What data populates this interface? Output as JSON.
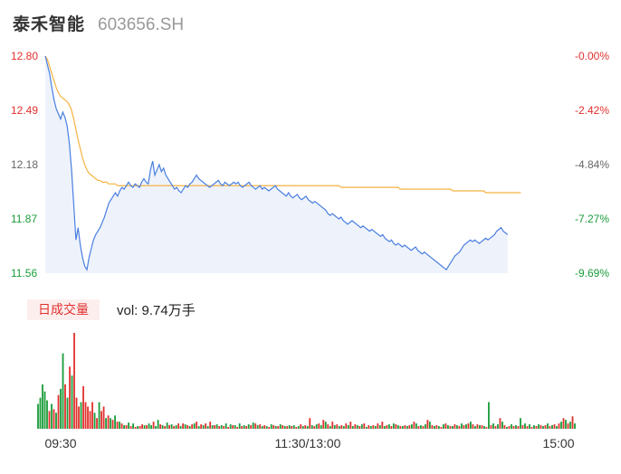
{
  "header": {
    "stock_name": "泰禾智能",
    "stock_code": "603656.SH"
  },
  "volume_panel": {
    "tab_label": "日成交量",
    "vol_prefix": "vol: ",
    "vol_value": "9.74万手"
  },
  "colors": {
    "up": "#e0312e",
    "down": "#1a9c3a",
    "price_line": "#4a7fe0",
    "avg_line": "#f5b342",
    "area_fill": "#eef3fb",
    "price_up_label": "#e0312e",
    "price_down_label": "#1a9c3a",
    "neutral_label": "#666666"
  },
  "chart_data": [
    {
      "type": "line",
      "y_left_ticks": [
        "12.80",
        "12.49",
        "12.18",
        "11.87",
        "11.56"
      ],
      "y_right_ticks": [
        "-0.00%",
        "-2.42%",
        "-4.84%",
        "-7.27%",
        "-9.69%"
      ],
      "ylim": [
        11.56,
        12.8
      ],
      "x_ticks": [
        "09:30",
        "11:30/13:00",
        "15:00"
      ],
      "total_minutes": 241,
      "series": [
        {
          "values": [
            12.8,
            12.75,
            12.7,
            12.62,
            12.55,
            12.5,
            12.47,
            12.44,
            12.48,
            12.45,
            12.4,
            12.3,
            12.15,
            11.95,
            11.75,
            11.82,
            11.72,
            11.65,
            11.6,
            11.58,
            11.65,
            11.7,
            11.75,
            11.78,
            11.8,
            11.82,
            11.85,
            11.88,
            11.92,
            11.96,
            11.98,
            12.0,
            12.02,
            12.0,
            12.03,
            12.05,
            12.04,
            12.06,
            12.08,
            12.06,
            12.05,
            12.07,
            12.06,
            12.05,
            12.08,
            12.1,
            12.08,
            12.07,
            12.15,
            12.2,
            12.12,
            12.15,
            12.18,
            12.14,
            12.16,
            12.12,
            12.1,
            12.08,
            12.06,
            12.04,
            12.05,
            12.03,
            12.02,
            12.04,
            12.06,
            12.05,
            12.07,
            12.08,
            12.1,
            12.12,
            12.1,
            12.09,
            12.08,
            12.07,
            12.06,
            12.05,
            12.06,
            12.07,
            12.08,
            12.09,
            12.07,
            12.06,
            12.08,
            12.07,
            12.06,
            12.07,
            12.08,
            12.07,
            12.08,
            12.06,
            12.05,
            12.06,
            12.07,
            12.08,
            12.06,
            12.05,
            12.04,
            12.05,
            12.06,
            12.04,
            12.05,
            12.04,
            12.03,
            12.04,
            12.05,
            12.06,
            12.04,
            12.03,
            12.02,
            12.01,
            12.0,
            12.02,
            12.0,
            11.99,
            12.0,
            12.01,
            11.99,
            11.98,
            11.99,
            12.0,
            11.98,
            11.97,
            11.96,
            11.97,
            11.96,
            11.95,
            11.94,
            11.93,
            11.92,
            11.9,
            11.89,
            11.9,
            11.89,
            11.88,
            11.87,
            11.88,
            11.86,
            11.85,
            11.84,
            11.85,
            11.86,
            11.85,
            11.84,
            11.83,
            11.82,
            11.83,
            11.82,
            11.81,
            11.8,
            11.81,
            11.8,
            11.79,
            11.78,
            11.77,
            11.78,
            11.76,
            11.75,
            11.74,
            11.75,
            11.73,
            11.72,
            11.73,
            11.72,
            11.71,
            11.72,
            11.71,
            11.7,
            11.69,
            11.7,
            11.71,
            11.69,
            11.68,
            11.67,
            11.68,
            11.67,
            11.66,
            11.65,
            11.64,
            11.63,
            11.62,
            11.61,
            11.6,
            11.59,
            11.58,
            11.6,
            11.62,
            11.64,
            11.66,
            11.67,
            11.68,
            11.7,
            11.72,
            11.73,
            11.74,
            11.75,
            11.74,
            11.75,
            11.74,
            11.73,
            11.74,
            11.75,
            11.76,
            11.75,
            11.76,
            11.77,
            11.78,
            11.8,
            11.81,
            11.82,
            11.8,
            11.79,
            11.78
          ],
          "color_key": "price_line"
        },
        {
          "values": [
            12.8,
            12.78,
            12.74,
            12.7,
            12.66,
            12.62,
            12.59,
            12.57,
            12.56,
            12.55,
            12.54,
            12.52,
            12.49,
            12.44,
            12.38,
            12.32,
            12.27,
            12.22,
            12.18,
            12.15,
            12.13,
            12.12,
            12.11,
            12.1,
            12.09,
            12.09,
            12.08,
            12.08,
            12.08,
            12.07,
            12.07,
            12.07,
            12.07,
            12.06,
            12.06,
            12.06,
            12.06,
            12.06,
            12.06,
            12.06,
            12.06,
            12.06,
            12.06,
            12.06,
            12.06,
            12.06,
            12.06,
            12.06,
            12.06,
            12.06,
            12.06,
            12.06,
            12.06,
            12.06,
            12.06,
            12.06,
            12.06,
            12.06,
            12.06,
            12.06,
            12.06,
            12.06,
            12.06,
            12.06,
            12.06,
            12.06,
            12.06,
            12.06,
            12.06,
            12.06,
            12.06,
            12.06,
            12.06,
            12.06,
            12.06,
            12.06,
            12.06,
            12.06,
            12.06,
            12.06,
            12.06,
            12.06,
            12.06,
            12.06,
            12.06,
            12.06,
            12.06,
            12.06,
            12.06,
            12.06,
            12.06,
            12.06,
            12.06,
            12.06,
            12.06,
            12.06,
            12.06,
            12.06,
            12.06,
            12.06,
            12.06,
            12.06,
            12.06,
            12.06,
            12.06,
            12.06,
            12.06,
            12.06,
            12.06,
            12.06,
            12.06,
            12.06,
            12.06,
            12.06,
            12.06,
            12.06,
            12.06,
            12.06,
            12.06,
            12.06,
            12.06,
            12.06,
            12.06,
            12.06,
            12.06,
            12.06,
            12.06,
            12.06,
            12.06,
            12.06,
            12.06,
            12.06,
            12.06,
            12.06,
            12.06,
            12.05,
            12.05,
            12.05,
            12.05,
            12.05,
            12.05,
            12.05,
            12.05,
            12.05,
            12.05,
            12.05,
            12.05,
            12.05,
            12.05,
            12.05,
            12.05,
            12.05,
            12.05,
            12.05,
            12.05,
            12.05,
            12.05,
            12.05,
            12.05,
            12.05,
            12.05,
            12.05,
            12.04,
            12.04,
            12.04,
            12.04,
            12.04,
            12.04,
            12.04,
            12.04,
            12.04,
            12.04,
            12.04,
            12.04,
            12.04,
            12.04,
            12.04,
            12.04,
            12.04,
            12.04,
            12.04,
            12.04,
            12.04,
            12.04,
            12.04,
            12.04,
            12.03,
            12.03,
            12.03,
            12.03,
            12.03,
            12.03,
            12.03,
            12.03,
            12.03,
            12.03,
            12.03,
            12.03,
            12.03,
            12.03,
            12.03,
            12.02,
            12.02,
            12.02,
            12.02,
            12.02,
            12.02,
            12.02,
            12.02,
            12.02,
            12.02,
            12.02,
            12.02,
            12.02,
            12.02,
            12.02,
            12.02,
            12.02
          ],
          "color_key": "avg_line"
        }
      ]
    },
    {
      "type": "bar",
      "ylim": [
        0,
        108
      ],
      "values": [
        28,
        35,
        50,
        42,
        32,
        20,
        28,
        22,
        18,
        38,
        45,
        85,
        50,
        35,
        70,
        60,
        108,
        35,
        25,
        30,
        48,
        30,
        25,
        20,
        30,
        18,
        12,
        30,
        20,
        25,
        12,
        15,
        12,
        10,
        15,
        8,
        8,
        6,
        4,
        4,
        7,
        3,
        6,
        2,
        3,
        3,
        5,
        4,
        4,
        6,
        4,
        8,
        3,
        10,
        5,
        4,
        3,
        7,
        4,
        5,
        3,
        4,
        6,
        3,
        6,
        5,
        4,
        3,
        5,
        6,
        8,
        3,
        5,
        4,
        6,
        3,
        8,
        4,
        4,
        5,
        3,
        4,
        3,
        6,
        2,
        5,
        4,
        4,
        2,
        6,
        3,
        4,
        3,
        5,
        4,
        7,
        6,
        4,
        5,
        3,
        4,
        3,
        2,
        5,
        4,
        3,
        3,
        5,
        4,
        3,
        3,
        4,
        3,
        4,
        2,
        3,
        5,
        3,
        4,
        3,
        12,
        4,
        3,
        5,
        6,
        4,
        10,
        8,
        5,
        3,
        8,
        4,
        5,
        3,
        4,
        3,
        6,
        4,
        8,
        3,
        5,
        4,
        3,
        5,
        6,
        2,
        4,
        3,
        4,
        3,
        6,
        4,
        8,
        3,
        4,
        5,
        3,
        6,
        5,
        4,
        3,
        3,
        4,
        3,
        4,
        5,
        8,
        6,
        3,
        4,
        3,
        5,
        10,
        8,
        4,
        3,
        4,
        3,
        2,
        5,
        6,
        4,
        3,
        3,
        5,
        4,
        3,
        6,
        4,
        5,
        6,
        8,
        5,
        3,
        5,
        4,
        4,
        3,
        2,
        30,
        4,
        6,
        3,
        5,
        12,
        8,
        4,
        2,
        3,
        5,
        3,
        4,
        3,
        12,
        4,
        6,
        3,
        5,
        2,
        4,
        3,
        5,
        4,
        3,
        4,
        6,
        3,
        4,
        5,
        3,
        6,
        8,
        12,
        10,
        6,
        8,
        14,
        6
      ],
      "directions": [
        "d",
        "d",
        "d",
        "d",
        "d",
        "u",
        "d",
        "u",
        "d",
        "u",
        "d",
        "d",
        "u",
        "d",
        "u",
        "d",
        "u",
        "u",
        "u",
        "d",
        "u",
        "u",
        "u",
        "u",
        "u",
        "d",
        "u",
        "d",
        "u",
        "u",
        "d",
        "u",
        "d",
        "u",
        "d",
        "u",
        "d",
        "u",
        "d",
        "u",
        "d",
        "u",
        "d",
        "u",
        "d",
        "u",
        "u",
        "d",
        "u",
        "d",
        "d",
        "u",
        "d",
        "d",
        "u",
        "d",
        "u",
        "d",
        "u",
        "d",
        "u",
        "d",
        "u",
        "d",
        "u",
        "d",
        "u",
        "d",
        "u",
        "d",
        "u",
        "d",
        "u",
        "d",
        "u",
        "d",
        "u",
        "d",
        "u",
        "d",
        "u",
        "d",
        "u",
        "d",
        "u",
        "d",
        "u",
        "d",
        "u",
        "d",
        "u",
        "d",
        "u",
        "d",
        "u",
        "d",
        "u",
        "d",
        "u",
        "d",
        "u",
        "d",
        "u",
        "d",
        "u",
        "d",
        "u",
        "d",
        "u",
        "d",
        "u",
        "d",
        "u",
        "d",
        "u",
        "d",
        "u",
        "d",
        "u",
        "d",
        "u",
        "d",
        "u",
        "d",
        "u",
        "d",
        "u",
        "d",
        "u",
        "d",
        "u",
        "d",
        "u",
        "d",
        "u",
        "d",
        "u",
        "d",
        "u",
        "d",
        "u",
        "d",
        "u",
        "d",
        "u",
        "d",
        "u",
        "d",
        "u",
        "d",
        "u",
        "d",
        "u",
        "d",
        "u",
        "d",
        "u",
        "d",
        "u",
        "d",
        "u",
        "d",
        "u",
        "d",
        "u",
        "d",
        "u",
        "d",
        "u",
        "d",
        "u",
        "d",
        "u",
        "d",
        "u",
        "d",
        "u",
        "d",
        "u",
        "d",
        "u",
        "d",
        "u",
        "d",
        "u",
        "d",
        "u",
        "d",
        "u",
        "d",
        "u",
        "d",
        "u",
        "d",
        "u",
        "d",
        "u",
        "d",
        "u",
        "d",
        "u",
        "d",
        "u",
        "d",
        "u",
        "d",
        "u",
        "d",
        "u",
        "d",
        "u",
        "d",
        "u",
        "d",
        "u",
        "d",
        "u",
        "d",
        "u",
        "d",
        "u",
        "d",
        "u",
        "d",
        "u",
        "d",
        "u",
        "d",
        "u",
        "d",
        "u",
        "d",
        "u",
        "d",
        "u",
        "d",
        "u",
        "d",
        "u",
        "d"
      ]
    }
  ]
}
